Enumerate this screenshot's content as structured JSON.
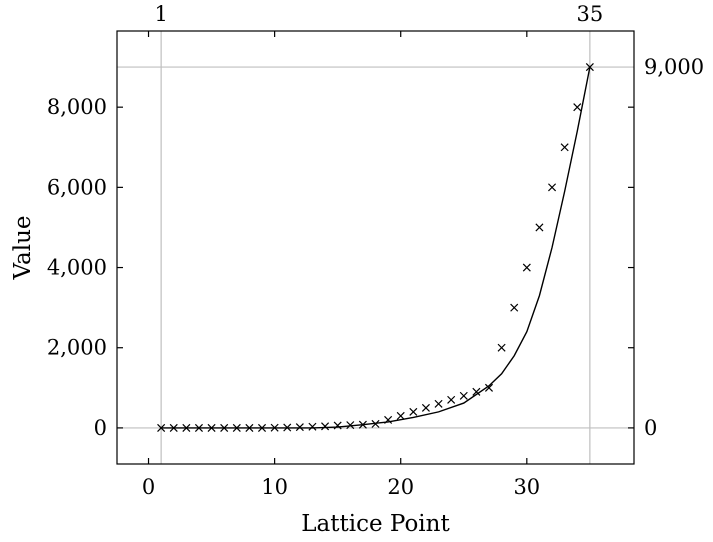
{
  "chart_data": {
    "type": "scatter",
    "title": "",
    "xlabel": "Lattice Point",
    "ylabel": "Value",
    "xlim": [
      -2.5,
      38.5
    ],
    "ylim": [
      -900,
      9900
    ],
    "x_ticks": [
      0,
      10,
      20,
      30
    ],
    "x_tick_labels": [
      "0",
      "10",
      "20",
      "30"
    ],
    "y_ticks": [
      0,
      2000,
      4000,
      6000,
      8000
    ],
    "y_tick_labels": [
      "0",
      "2,000",
      "4,000",
      "6,000",
      "8,000"
    ],
    "top_axis": {
      "ticks": [
        1,
        35
      ],
      "labels": [
        "1",
        "35"
      ]
    },
    "right_axis": {
      "ticks": [
        0,
        9000
      ],
      "labels": [
        "0",
        "9,000"
      ]
    },
    "reference_lines": {
      "vertical": [
        1,
        35
      ],
      "horizontal": [
        0,
        9000
      ],
      "color": "#bfbfbf"
    },
    "grid": false,
    "legend": "none",
    "series": [
      {
        "marker": "cross",
        "color": "#000000",
        "x": [
          1,
          2,
          3,
          4,
          5,
          6,
          7,
          8,
          9,
          10,
          11,
          12,
          13,
          14,
          15,
          16,
          17,
          18,
          19,
          20,
          21,
          22,
          23,
          24,
          25,
          26,
          27,
          28,
          29,
          30,
          31,
          32,
          33,
          34,
          35
        ],
        "y": [
          0,
          0,
          0,
          0,
          0,
          0,
          0,
          0,
          0,
          5,
          10,
          20,
          30,
          40,
          60,
          70,
          80,
          100,
          200,
          300,
          400,
          500,
          600,
          700,
          800,
          900,
          1000,
          2000,
          3000,
          4000,
          5000,
          6000,
          7000,
          8000,
          9000
        ]
      },
      {
        "style": "line",
        "color": "#000000",
        "x": [
          1,
          3,
          5,
          7,
          9,
          11,
          13,
          15,
          17,
          19,
          21,
          23,
          25,
          27,
          28,
          29,
          30,
          31,
          32,
          33,
          34,
          35
        ],
        "y": [
          0,
          0,
          0,
          0,
          0,
          0,
          0,
          20,
          80,
          150,
          260,
          400,
          620,
          1050,
          1350,
          1800,
          2400,
          3300,
          4500,
          5900,
          7400,
          9000
        ]
      }
    ]
  }
}
